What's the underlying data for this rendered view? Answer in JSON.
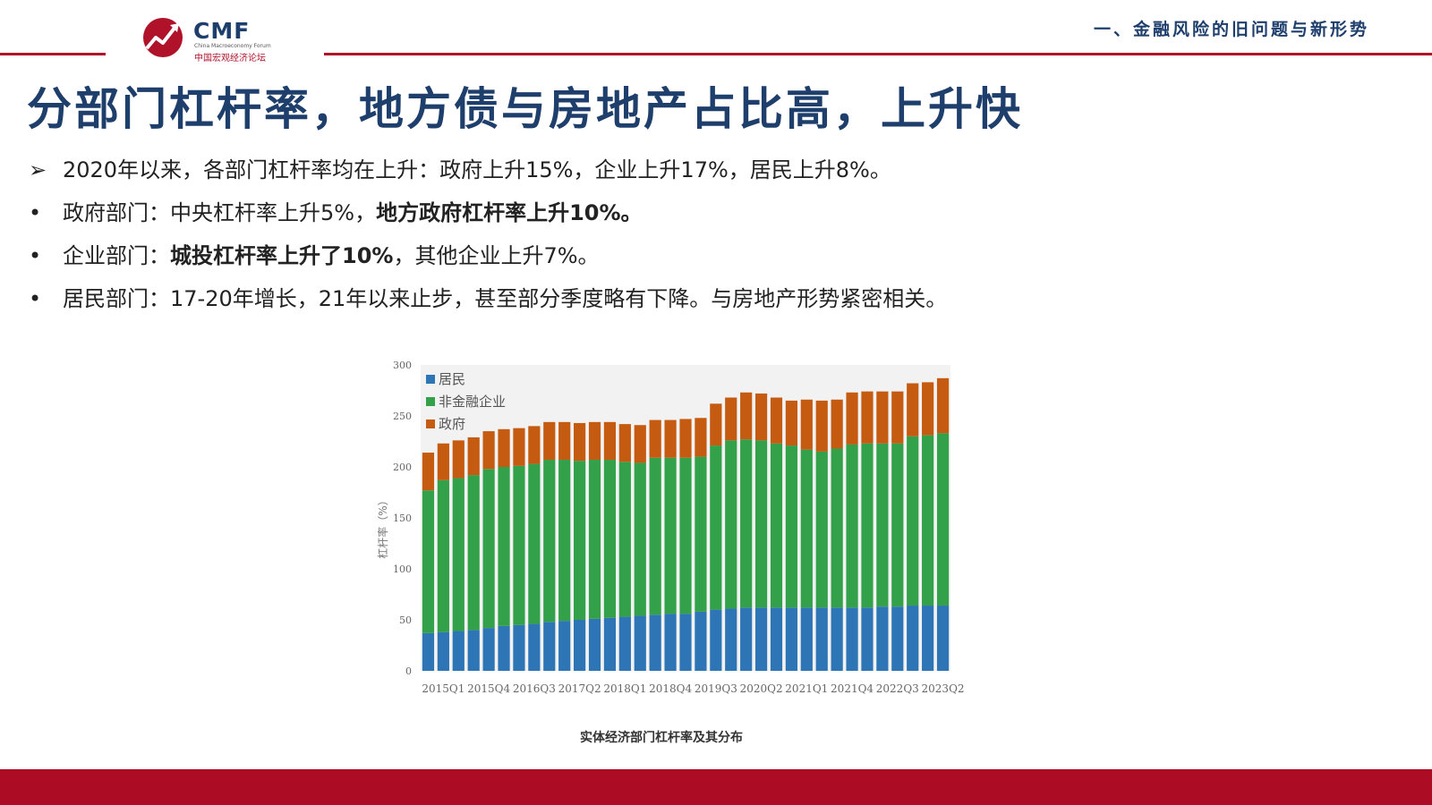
{
  "header": {
    "logo_text": "CMF",
    "logo_en": "China Macroeconomy Forum",
    "logo_cn": "中国宏观经济论坛",
    "section": "一、金融风险的旧问题与新形势"
  },
  "title": "分部门杠杆率，地方债与房地产占比高，上升快",
  "bullets": [
    {
      "marker": "➢",
      "text": "2020年以来，各部门杠杆率均在上升：政府上升15%，企业上升17%，居民上升8%。"
    },
    {
      "marker": "•",
      "text": "政府部门：中央杠杆率上升5%，",
      "bold": "地方政府杠杆率上升10%。"
    },
    {
      "marker": "•",
      "text": "企业部门：",
      "bold": "城投杠杆率上升了10%",
      "text2": "，其他企业上升7%。"
    },
    {
      "marker": "•",
      "text": "居民部门：17-20年增长，21年以来止步，甚至部分季度略有下降。与房地产形势紧密相关。"
    }
  ],
  "caption": "实体经济部门杠杆率及其分布",
  "colors": {
    "title": "#1e3e6c",
    "accent": "#b0122a",
    "household": "#2e75b6",
    "corporate": "#33a04a",
    "government": "#c55a11"
  },
  "chart_data": {
    "type": "bar",
    "stacked": true,
    "ylabel": "杠杆率（%）",
    "ylim": [
      0,
      300
    ],
    "yticks": [
      0,
      50,
      100,
      150,
      200,
      250,
      300
    ],
    "legend_position": "top-left",
    "categories": [
      "2015Q1",
      "2015Q2",
      "2015Q3",
      "2015Q4",
      "2016Q1",
      "2016Q2",
      "2016Q3",
      "2016Q4",
      "2017Q1",
      "2017Q2",
      "2017Q3",
      "2017Q4",
      "2018Q1",
      "2018Q2",
      "2018Q3",
      "2018Q4",
      "2019Q1",
      "2019Q2",
      "2019Q3",
      "2019Q4",
      "2020Q1",
      "2020Q2",
      "2020Q3",
      "2020Q4",
      "2021Q1",
      "2021Q2",
      "2021Q3",
      "2021Q4",
      "2022Q1",
      "2022Q2",
      "2022Q3",
      "2022Q4",
      "2023Q1",
      "2023Q2",
      "2023Q3"
    ],
    "tick_labels": [
      "2015Q1",
      "2015Q4",
      "2016Q3",
      "2017Q2",
      "2018Q1",
      "2018Q4",
      "2019Q3",
      "2020Q2",
      "2021Q1",
      "2021Q4",
      "2022Q3",
      "2023Q2"
    ],
    "series": [
      {
        "name": "居民",
        "values": [
          37,
          38,
          39,
          40,
          42,
          44,
          45,
          46,
          48,
          49,
          50,
          51,
          52,
          53,
          54,
          55,
          56,
          56,
          58,
          60,
          61,
          62,
          62,
          62,
          62,
          62,
          62,
          62,
          62,
          62,
          63,
          63,
          64,
          64,
          64
        ]
      },
      {
        "name": "非金融企业",
        "values": [
          140,
          149,
          150,
          152,
          156,
          156,
          156,
          157,
          159,
          158,
          156,
          156,
          155,
          152,
          150,
          154,
          153,
          153,
          152,
          161,
          165,
          165,
          164,
          161,
          159,
          155,
          153,
          156,
          160,
          161,
          160,
          160,
          166,
          167,
          169
        ]
      },
      {
        "name": "政府",
        "values": [
          37,
          36,
          37,
          37,
          37,
          37,
          37,
          37,
          37,
          37,
          37,
          37,
          37,
          37,
          37,
          37,
          37,
          38,
          38,
          41,
          42,
          46,
          46,
          45,
          44,
          49,
          50,
          48,
          51,
          51,
          51,
          51,
          52,
          52,
          54
        ]
      }
    ]
  }
}
